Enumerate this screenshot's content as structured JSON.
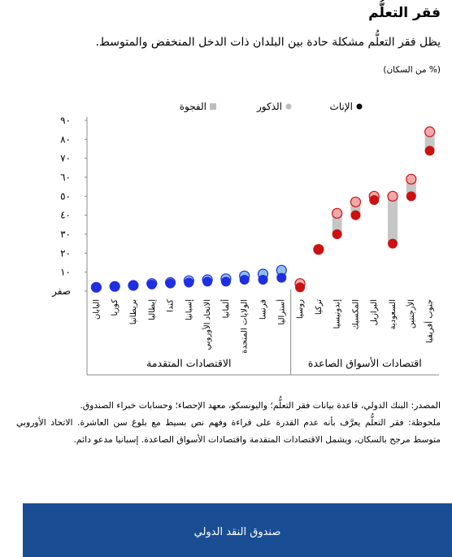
{
  "header": {
    "title": "فقر التعلُّم",
    "subtitle": "يظل فقر التعلُّم مشكلة حادة بين البلدان ذات الدخل المنخفض والمتوسط.",
    "unit": "(% من السكان)"
  },
  "colors": {
    "advanced_female": "#1f2fe0",
    "advanced_male": "#8ec0ef",
    "emerging_female": "#cc1111",
    "emerging_male": "#f2a8a8",
    "gap": "#c6c6c6"
  },
  "chart_data": {
    "type": "scatter",
    "legend_position": "top",
    "legend": [
      {
        "key": "female",
        "label": "الإناث"
      },
      {
        "key": "male",
        "label": "الذكور"
      },
      {
        "key": "gap",
        "label": "الفجوة"
      }
    ],
    "y_ticks": [
      "صفر",
      "١٠",
      "٢٠",
      "٣٠",
      "٤٠",
      "٥٠",
      "٦٠",
      "٧٠",
      "٨٠",
      "٩٠"
    ],
    "ylim": [
      0,
      90
    ],
    "groups": [
      "الاقتصادات المتقدمة",
      "اقتصادات الأسواق الصاعدة"
    ],
    "categories": [
      "اليابان",
      "كوريا",
      "بريطانيا",
      "إيطاليا",
      "كندا",
      "إسبانيا",
      "الاتحاد الأوروبي",
      "ألمانيا",
      "الولايات المتحدة",
      "فرنسا",
      "أستراليا",
      "روسيا",
      "تركيا",
      "إندونيسيا",
      "المكسيك",
      "البرازيل",
      "السعودية",
      "الأرجنتين",
      "جنوب أفريقيا"
    ],
    "category_group": [
      0,
      0,
      0,
      0,
      0,
      0,
      0,
      0,
      0,
      0,
      0,
      1,
      1,
      1,
      1,
      1,
      1,
      1,
      1
    ],
    "series": [
      {
        "name": "الإناث",
        "values": [
          2,
          2.5,
          3,
          3.5,
          4,
          4.5,
          5,
          5,
          6,
          6,
          7,
          2,
          22,
          30,
          40,
          48,
          25,
          50,
          74
        ]
      },
      {
        "name": "الذكور",
        "values": [
          2,
          2.5,
          3,
          4,
          4.5,
          5.5,
          6,
          6.5,
          8,
          9,
          11,
          4,
          22,
          41,
          47,
          50,
          50,
          59,
          84
        ]
      }
    ]
  },
  "notes": {
    "source": "المصدر: البنك الدولي، قاعدة بيانات فقر التعلُّم؛ واليونسكو، معهد الإحصاء؛ وحسابات خبراء الصندوق.",
    "note": "ملحوظة: فقر التعلُّم يعرَّف بأنه عدم القدرة على قراءة وفهم نص بسيط مع بلوغ سن العاشرة. الاتحاد الأوروبي متوسط مرجح بالسكان، ويشمل الاقتصادات المتقدمة واقتصادات الأسواق الصاعدة. إسبانيا مدعو دائم."
  },
  "footer": {
    "label": "صندوق النقد الدولي"
  }
}
